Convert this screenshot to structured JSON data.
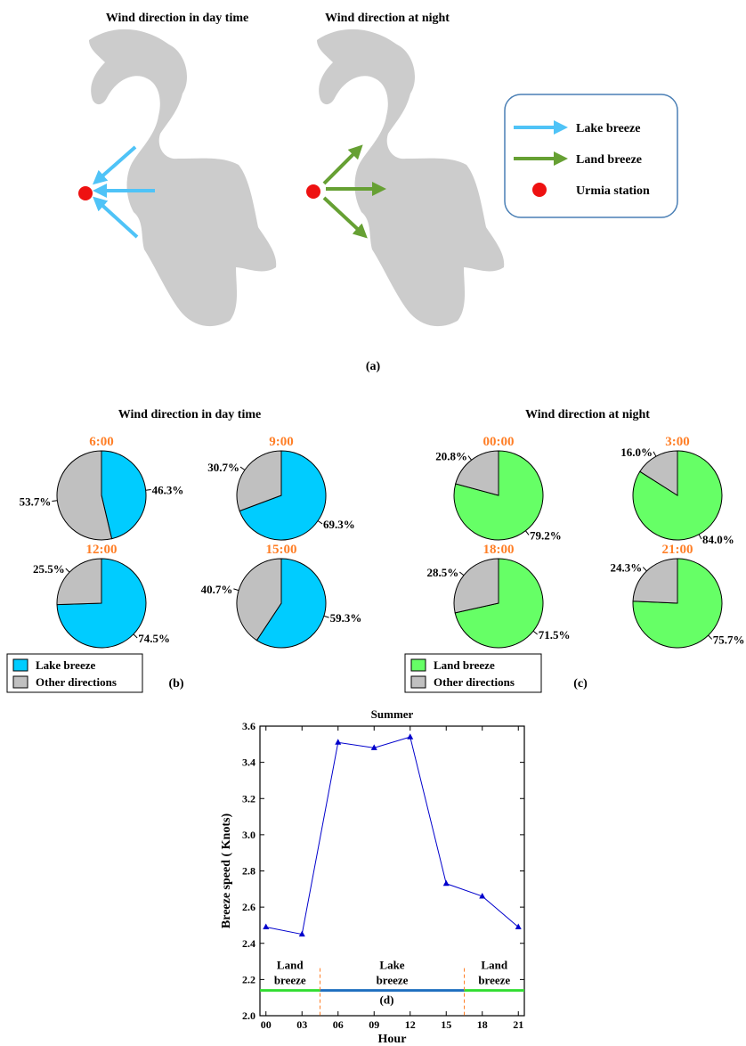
{
  "panel_a": {
    "title_day": "Wind direction in day time",
    "title_night": "Wind direction at night",
    "label": "(a)",
    "legend": {
      "lake": "Lake breeze",
      "land": "Land breeze",
      "station": "Urmia station"
    }
  },
  "panel_b": {
    "title": "Wind direction in day time",
    "label": "(b)",
    "legend_main": "Lake breeze",
    "legend_other": "Other directions"
  },
  "panel_c": {
    "title": "Wind direction at night",
    "label": "(c)",
    "legend_main": "Land breeze",
    "legend_other": "Other directions"
  },
  "colors": {
    "lake": "#00ccff",
    "land": "#66ff66",
    "other": "#c0c0c0",
    "hour_label": "#ff7f27",
    "arrow_lake": "#4fc3f7",
    "arrow_land": "#66a033",
    "station": "#ee1111",
    "map": "#cccccc",
    "line": "#0000cc"
  },
  "chart_data": [
    {
      "type": "pie",
      "panel": "b",
      "charts": [
        {
          "title": "6:00",
          "main": 46.3,
          "other": 53.7,
          "main_label": "46.3%",
          "other_label": "53.7%"
        },
        {
          "title": "9:00",
          "main": 69.3,
          "other": 30.7,
          "main_label": "69.3%",
          "other_label": "30.7%"
        },
        {
          "title": "12:00",
          "main": 74.5,
          "other": 25.5,
          "main_label": "74.5%",
          "other_label": "25.5%"
        },
        {
          "title": "15:00",
          "main": 59.3,
          "other": 40.7,
          "main_label": "59.3%",
          "other_label": "40.7%"
        }
      ],
      "legend": [
        "Lake breeze",
        "Other directions"
      ]
    },
    {
      "type": "pie",
      "panel": "c",
      "charts": [
        {
          "title": "00:00",
          "main": 79.2,
          "other": 20.8,
          "main_label": "79.2%",
          "other_label": "20.8%"
        },
        {
          "title": "3:00",
          "main": 84.0,
          "other": 16.0,
          "main_label": "84.0%",
          "other_label": "16.0%"
        },
        {
          "title": "18:00",
          "main": 71.5,
          "other": 28.5,
          "main_label": "71.5%",
          "other_label": "28.5%"
        },
        {
          "title": "21:00",
          "main": 75.7,
          "other": 24.3,
          "main_label": "75.7%",
          "other_label": "24.3%"
        }
      ],
      "legend": [
        "Land breeze",
        "Other directions"
      ]
    },
    {
      "type": "line",
      "panel": "d",
      "title": "Summer",
      "xlabel": "Hour",
      "ylabel": "Breeze speed ( Knots)",
      "x": [
        0,
        3,
        6,
        9,
        12,
        15,
        18,
        21
      ],
      "xticklabels": [
        "00",
        "03",
        "06",
        "09",
        "12",
        "15",
        "18",
        "21"
      ],
      "values": [
        2.49,
        2.45,
        3.51,
        3.48,
        3.54,
        2.73,
        2.66,
        2.49
      ],
      "ylim": [
        2.0,
        3.6
      ],
      "yticks": [
        "2.0",
        "2.2",
        "2.4",
        "2.6",
        "2.8",
        "3.0",
        "3.2",
        "3.4",
        "3.6"
      ],
      "xlim": [
        -0.5,
        21.5
      ],
      "regions": [
        {
          "label_line1": "Land",
          "label_line2": "breeze",
          "from_hour": -0.5,
          "to_hour": 4.5,
          "kind": "land"
        },
        {
          "label_line1": "Lake",
          "label_line2": "breeze",
          "from_hour": 4.5,
          "to_hour": 16.5,
          "kind": "lake"
        },
        {
          "label_line1": "Land",
          "label_line2": "breeze",
          "from_hour": 16.5,
          "to_hour": 21.5,
          "kind": "land"
        }
      ],
      "region_level": 2.14,
      "panel_label": "(d)",
      "marker": "triangle",
      "grid": false
    }
  ]
}
